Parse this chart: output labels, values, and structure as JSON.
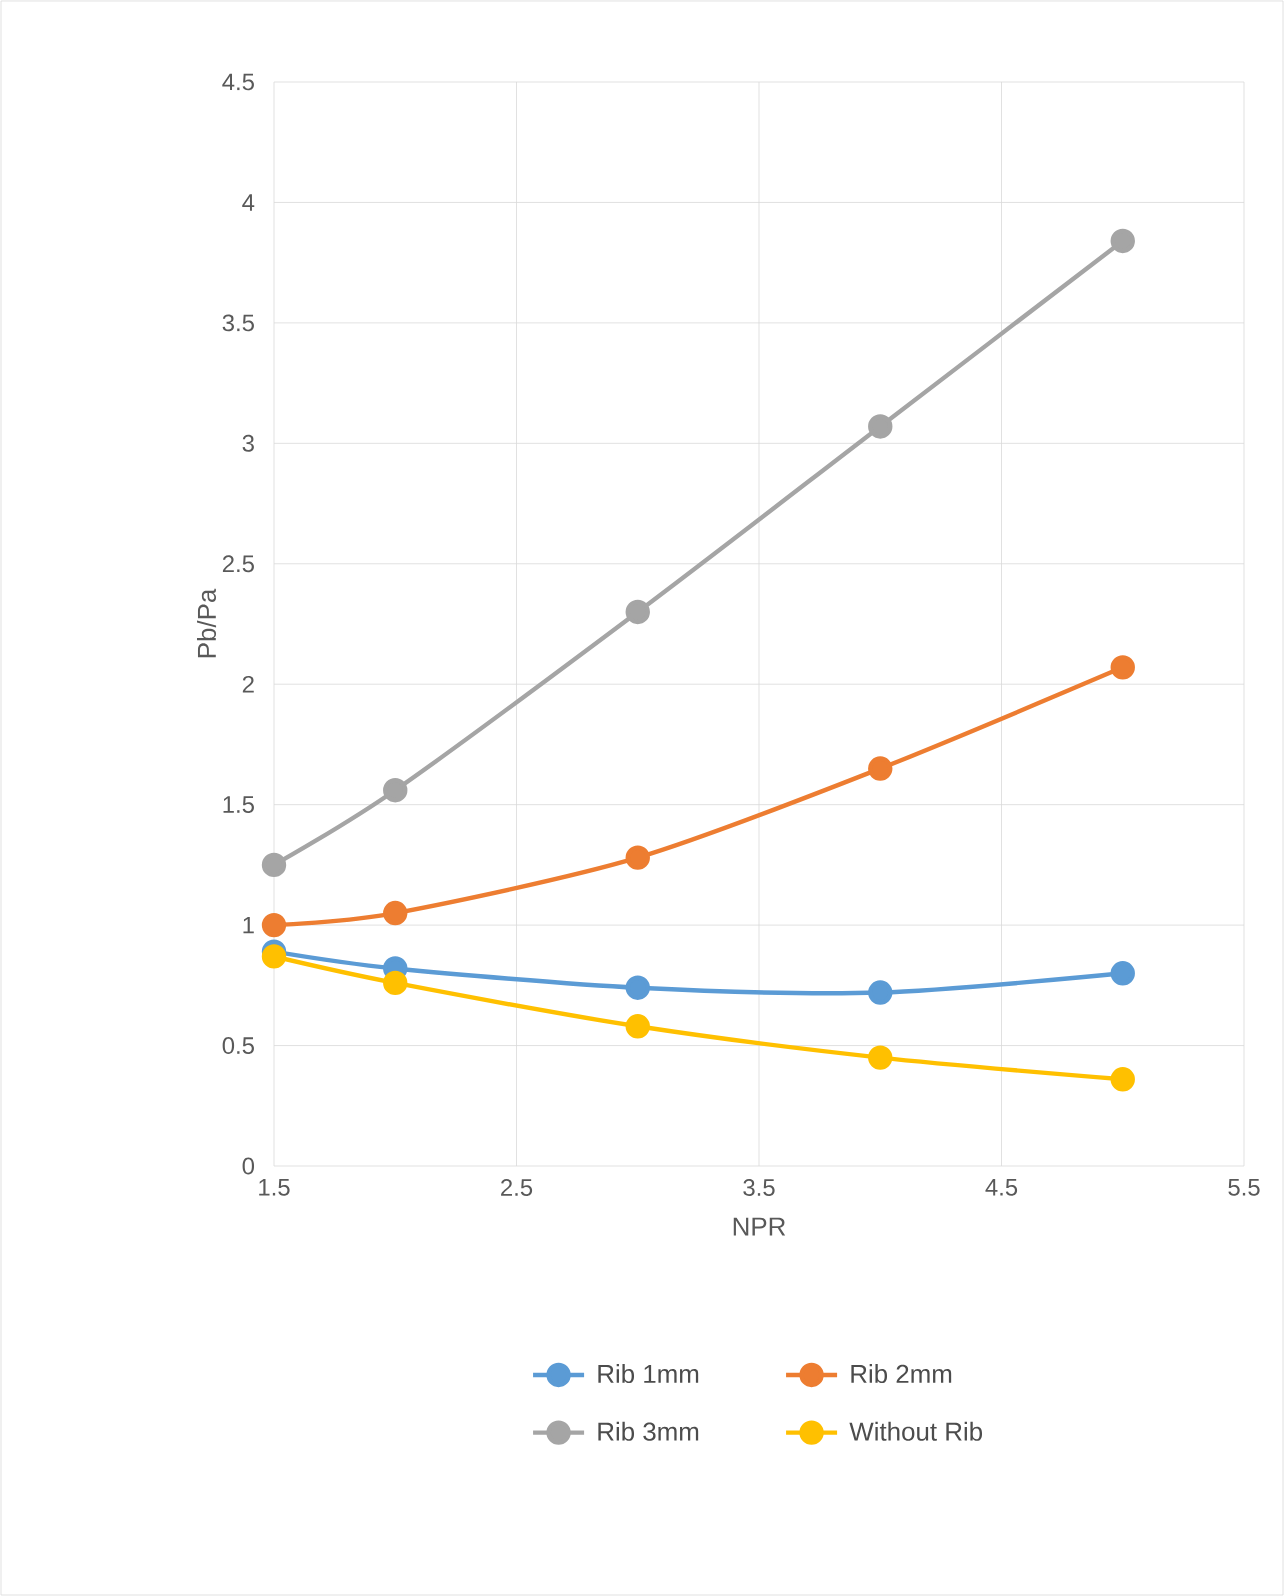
{
  "chart_data": {
    "type": "line",
    "xlabel": "NPR",
    "ylabel": "Pb/Pa",
    "x": [
      1.5,
      2,
      3,
      4,
      5
    ],
    "series": [
      {
        "name": "Rib 1mm",
        "color": "#5b9bd5",
        "values": [
          0.89,
          0.82,
          0.74,
          0.72,
          0.8
        ]
      },
      {
        "name": "Rib 2mm",
        "color": "#ed7d31",
        "values": [
          1.0,
          1.05,
          1.28,
          1.65,
          2.07
        ]
      },
      {
        "name": "Rib 3mm",
        "color": "#a5a5a5",
        "values": [
          1.25,
          1.56,
          2.3,
          3.07,
          3.84
        ]
      },
      {
        "name": "Without Rib",
        "color": "#ffc000",
        "values": [
          0.87,
          0.76,
          0.58,
          0.45,
          0.36
        ]
      }
    ],
    "xlim": [
      1.5,
      5.5
    ],
    "xticks": [
      1.5,
      2.5,
      3.5,
      4.5,
      5.5
    ],
    "ylim": [
      0,
      4.5
    ],
    "yticks": [
      0,
      0.5,
      1,
      1.5,
      2,
      2.5,
      3,
      3.5,
      4,
      4.5
    ],
    "grid": true,
    "legend": "bottom",
    "marker": "circle",
    "line_style": "solid"
  }
}
